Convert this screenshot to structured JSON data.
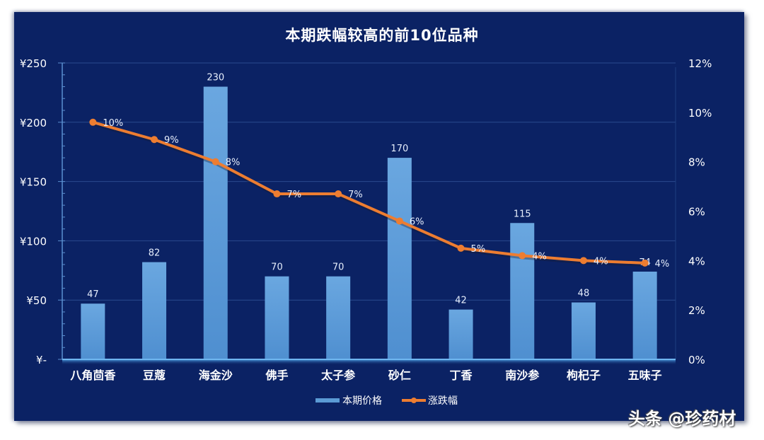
{
  "chart_data": {
    "type": "bar+line",
    "title": "本期跌幅较高的前10位品种",
    "categories": [
      "八角茴香",
      "豆蔻",
      "海金沙",
      "佛手",
      "太子参",
      "砂仁",
      "丁香",
      "南沙参",
      "枸杞子",
      "五味子"
    ],
    "series": [
      {
        "name": "本期价格",
        "type": "bar",
        "axis": "left",
        "values": [
          47,
          82,
          230,
          70,
          70,
          170,
          42,
          115,
          48,
          74
        ],
        "labels": [
          "47",
          "82",
          "230",
          "70",
          "70",
          "170",
          "42",
          "115",
          "48",
          "74"
        ],
        "color": "#5b9bd5"
      },
      {
        "name": "涨跌幅",
        "type": "line",
        "axis": "right",
        "values": [
          9.6,
          8.9,
          8.0,
          6.7,
          6.7,
          5.6,
          4.5,
          4.2,
          4.0,
          3.9
        ],
        "labels": [
          "10%",
          "9%",
          "8%",
          "7%",
          "7%",
          "6%",
          "5%",
          "4%",
          "4%",
          "4%"
        ],
        "color": "#ed7d31"
      }
    ],
    "y_left": {
      "ticks": [
        0,
        50,
        100,
        150,
        200,
        250
      ],
      "tick_labels": [
        "¥-",
        "¥50",
        "¥100",
        "¥150",
        "¥200",
        "¥250"
      ],
      "ylim": [
        0,
        250
      ]
    },
    "y_right": {
      "ticks": [
        0,
        2,
        4,
        6,
        8,
        10,
        12
      ],
      "tick_labels": [
        "0%",
        "2%",
        "4%",
        "6%",
        "8%",
        "10%",
        "12%"
      ],
      "ylim": [
        0,
        12
      ]
    },
    "xlabel": "",
    "ylabel": "",
    "grid": true,
    "legend_position": "bottom"
  },
  "legend": {
    "bar_label": "本期价格",
    "line_label": "涨跌幅"
  },
  "watermark": "头条 @珍药材",
  "colors": {
    "background": "#0b2264",
    "bar": "#5b9bd5",
    "line": "#ed7d31",
    "text": "#ffffff"
  }
}
